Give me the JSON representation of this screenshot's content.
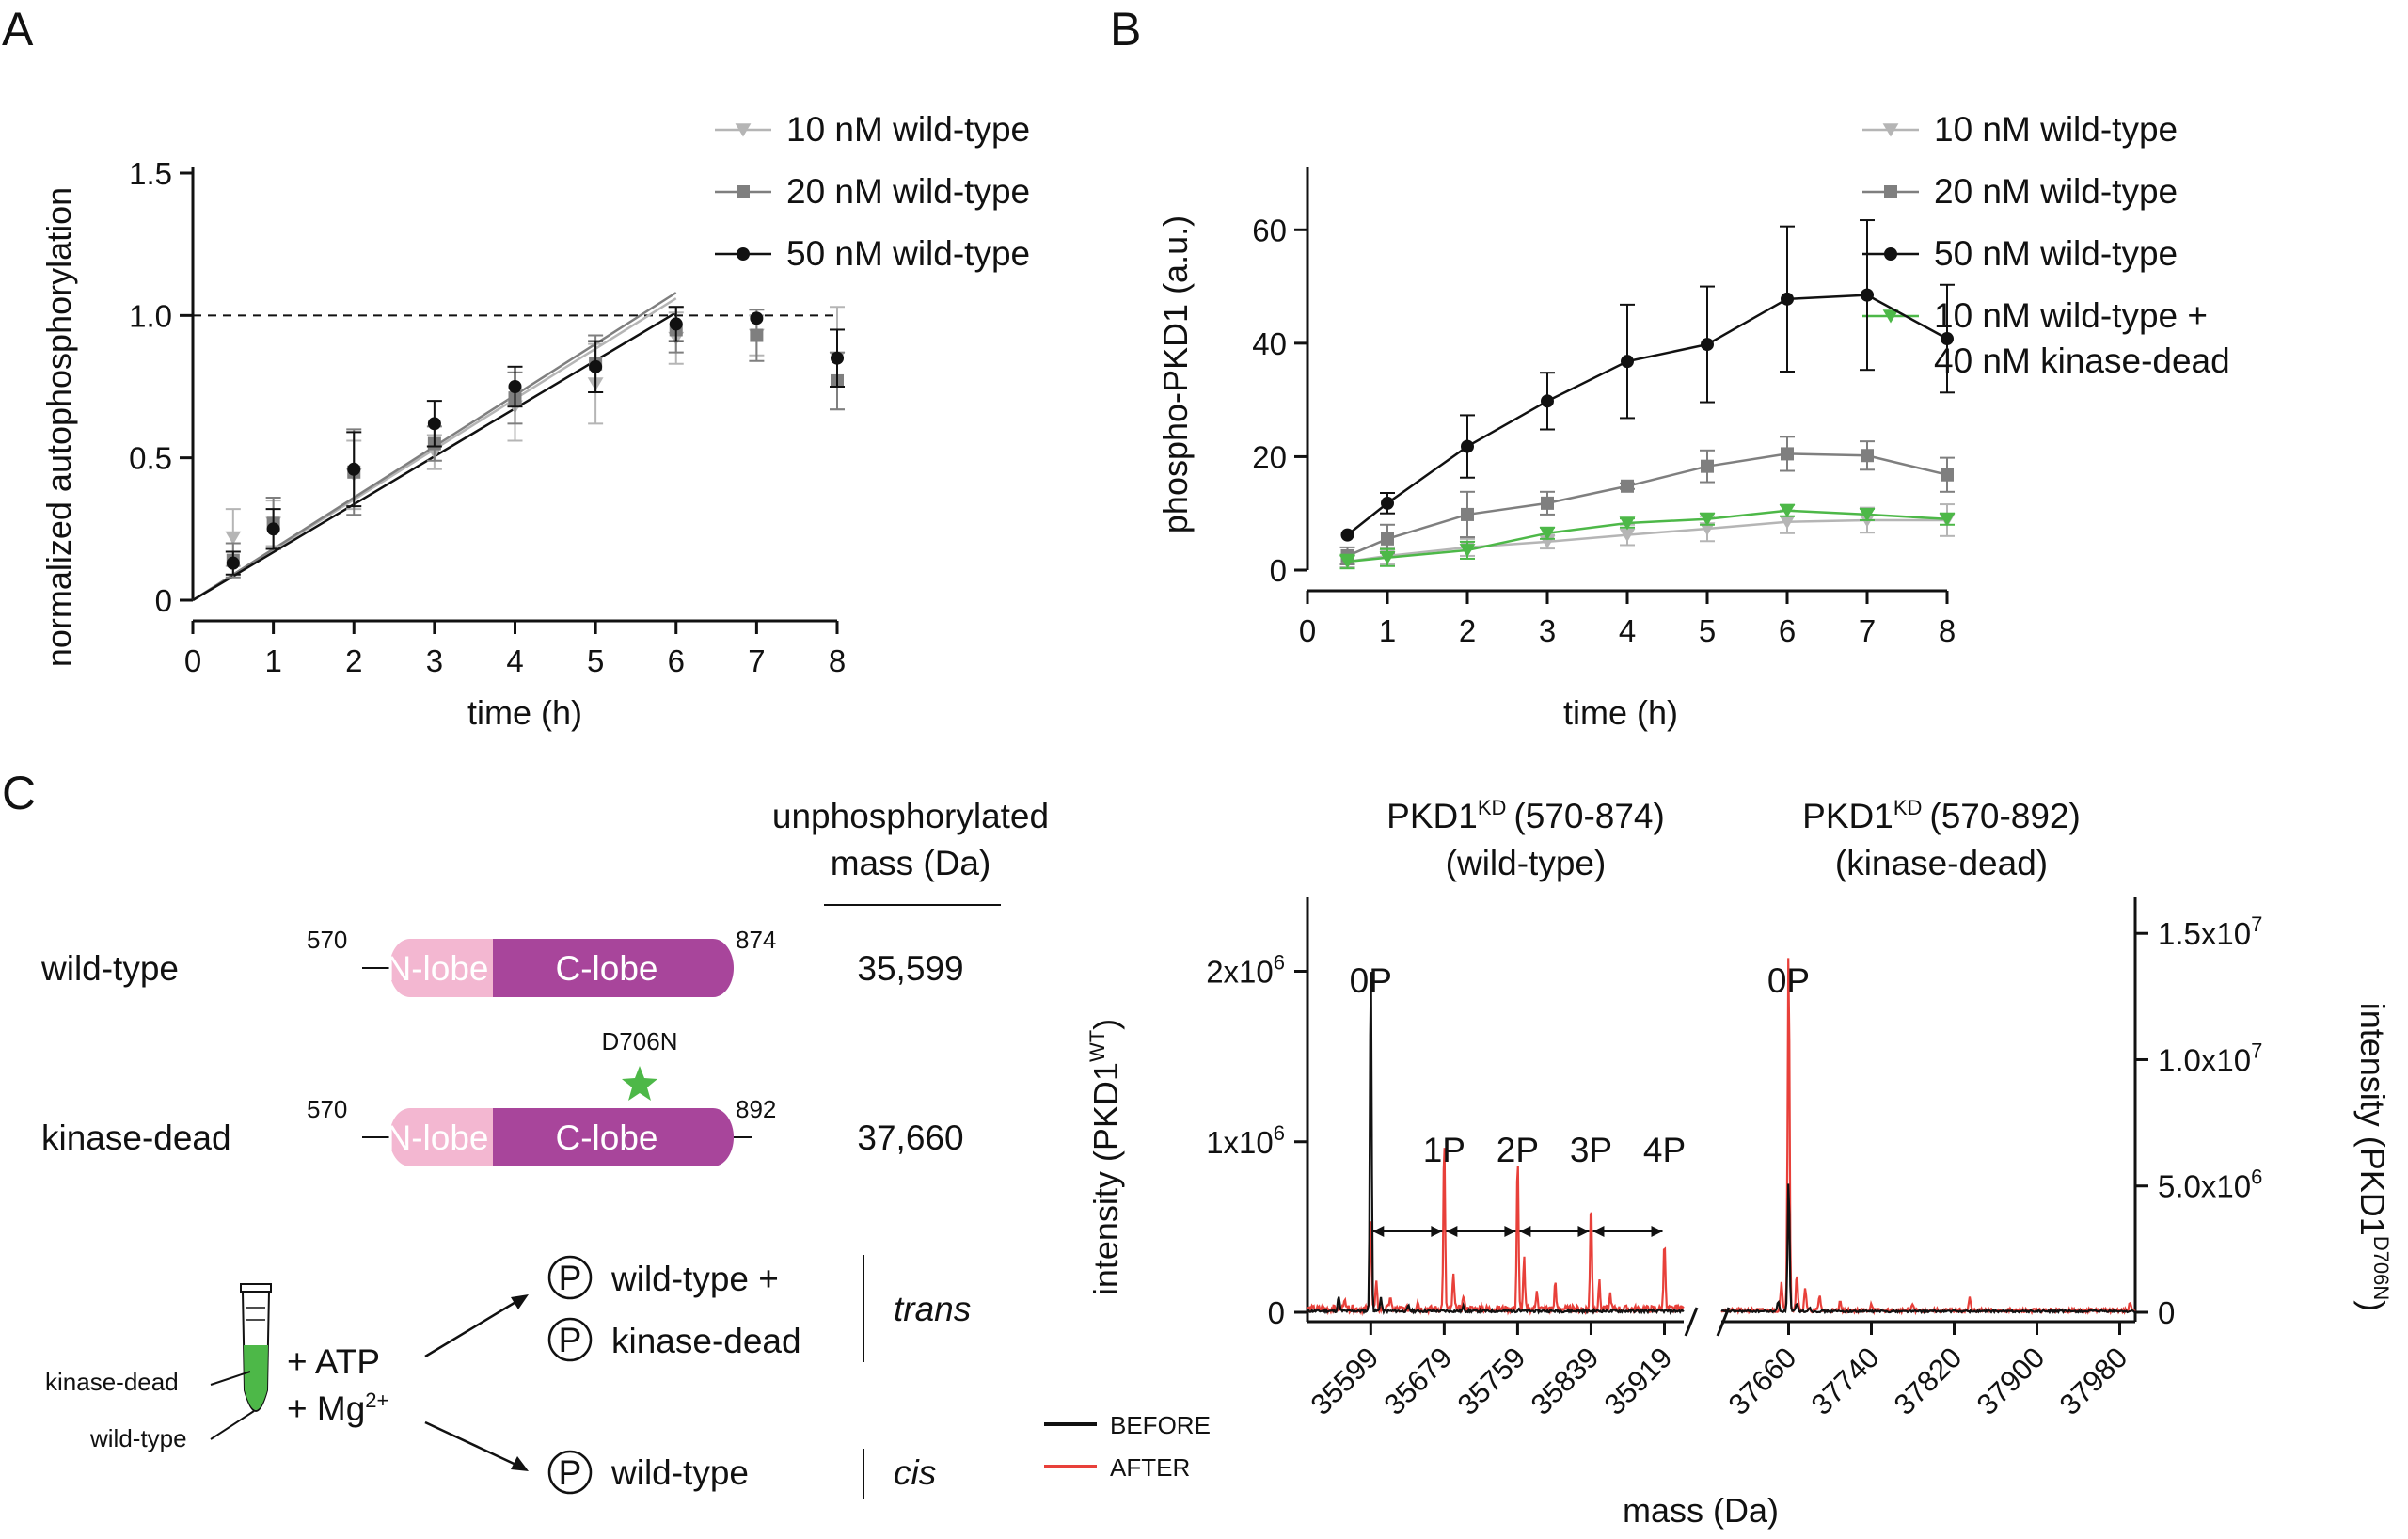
{
  "panels": {
    "a": "A",
    "b": "B",
    "c": "C"
  },
  "colors": {
    "black": "#111111",
    "dark_grey": "#7f7f7f",
    "light_grey": "#b5b5b5",
    "green": "#4db848",
    "red": "#e8403a",
    "pink": "#f3b7d1",
    "magenta": "#a8459b"
  },
  "chart_data": [
    {
      "id": "A",
      "type": "scatter",
      "xlabel": "time (h)",
      "ylabel": "normalized autophosphorylation",
      "xlim": [
        0,
        8
      ],
      "ylim": [
        0,
        1.5
      ],
      "xticks": [
        "0",
        "1",
        "2",
        "3",
        "4",
        "5",
        "6",
        "7",
        "8"
      ],
      "yticks": [
        "0",
        "0.5",
        "1.0",
        "1.5"
      ],
      "reference_line": {
        "y": 1.0,
        "style": "dashed"
      },
      "legend_position": "top-right",
      "series": [
        {
          "name": "10 nM wild-type",
          "marker": "triangle-down",
          "color": "#b5b5b5",
          "x": [
            0.5,
            1,
            2,
            3,
            4,
            5,
            6,
            7,
            8
          ],
          "y": [
            0.22,
            0.27,
            0.44,
            0.52,
            0.68,
            0.76,
            0.92,
            0.93,
            0.85
          ],
          "err": [
            0.1,
            0.08,
            0.12,
            0.06,
            0.12,
            0.14,
            0.09,
            0.07,
            0.18
          ],
          "fit": [
            [
              0,
              0
            ],
            [
              6,
              1.06
            ]
          ]
        },
        {
          "name": "20 nM wild-type",
          "marker": "square",
          "color": "#7f7f7f",
          "x": [
            0.5,
            1,
            2,
            3,
            4,
            5,
            6,
            7,
            8
          ],
          "y": [
            0.14,
            0.27,
            0.45,
            0.55,
            0.71,
            0.83,
            0.95,
            0.93,
            0.77
          ],
          "err": [
            0.06,
            0.09,
            0.15,
            0.06,
            0.09,
            0.1,
            0.08,
            0.09,
            0.1
          ],
          "fit": [
            [
              0,
              0
            ],
            [
              6,
              1.08
            ]
          ]
        },
        {
          "name": "50 nM wild-type",
          "marker": "circle",
          "color": "#111111",
          "x": [
            0.5,
            1,
            2,
            3,
            4,
            5,
            6,
            7,
            8
          ],
          "y": [
            0.13,
            0.25,
            0.46,
            0.62,
            0.75,
            0.82,
            0.97,
            0.99,
            0.85
          ],
          "err": [
            0.04,
            0.07,
            0.13,
            0.08,
            0.07,
            0.09,
            0.06,
            0.0,
            0.1
          ],
          "fit": [
            [
              0,
              0
            ],
            [
              6,
              1.01
            ]
          ]
        }
      ]
    },
    {
      "id": "B",
      "type": "line",
      "xlabel": "time (h)",
      "ylabel": "phospho-PKD1 (a.u.)",
      "xlim": [
        0,
        8
      ],
      "ylim": [
        0,
        70
      ],
      "xticks": [
        "0",
        "1",
        "2",
        "3",
        "4",
        "5",
        "6",
        "7",
        "8"
      ],
      "yticks": [
        "0",
        "20",
        "40",
        "60"
      ],
      "legend_position": "top-right",
      "series": [
        {
          "name": "10 nM wild-type",
          "marker": "triangle-down",
          "color": "#b5b5b5",
          "x": [
            0.5,
            1,
            2,
            3,
            4,
            5,
            6,
            7,
            8
          ],
          "y": [
            1.5,
            2.5,
            4.0,
            5.0,
            6.2,
            7.3,
            8.5,
            8.8,
            8.8
          ],
          "err": [
            1.0,
            1.5,
            1.5,
            1.2,
            1.8,
            2.2,
            2.0,
            2.2,
            2.8
          ]
        },
        {
          "name": "20 nM wild-type",
          "marker": "square",
          "color": "#7f7f7f",
          "x": [
            0.5,
            1,
            2,
            3,
            4,
            5,
            6,
            7,
            8
          ],
          "y": [
            2.5,
            5.5,
            9.8,
            11.8,
            14.8,
            18.3,
            20.5,
            20.2,
            16.8
          ],
          "err": [
            1.5,
            2.5,
            4.0,
            2.0,
            0.5,
            2.8,
            3.0,
            2.5,
            3.0
          ]
        },
        {
          "name": "50 nM wild-type",
          "marker": "circle",
          "color": "#111111",
          "x": [
            0.5,
            1,
            2,
            3,
            4,
            5,
            6,
            7,
            8
          ],
          "y": [
            6.2,
            11.8,
            21.8,
            29.8,
            36.8,
            39.8,
            47.8,
            48.5,
            40.8
          ],
          "err": [
            0.0,
            1.8,
            5.5,
            5.0,
            10.0,
            10.2,
            12.8,
            13.2,
            9.5
          ]
        },
        {
          "name": "10 nM wild-type +\n40 nM kinase-dead",
          "name_lines": [
            "10 nM wild-type +",
            "40 nM kinase-dead"
          ],
          "marker": "triangle-down",
          "color": "#4db848",
          "x": [
            0.5,
            1,
            2,
            3,
            4,
            5,
            6,
            7,
            8
          ],
          "y": [
            1.5,
            2.2,
            3.5,
            6.5,
            8.3,
            9.0,
            10.5,
            9.8,
            9.0
          ],
          "err": [
            1.2,
            1.5,
            1.5,
            1.0,
            0.8,
            1.0,
            1.0,
            1.0,
            1.0
          ]
        }
      ]
    },
    {
      "id": "C-wild-type",
      "type": "line",
      "title_lines": [
        "(570-874)",
        "(wild-type)"
      ],
      "title_prefix": "PKD1",
      "title_super": "KD",
      "xlabel": "mass (Da)",
      "ylabel_prefix": "intensity (PKD1",
      "ylabel_super": "WT",
      "ylabel_suffix": ")",
      "xlim": [
        35530,
        35940
      ],
      "ylim": [
        0,
        2400000.0
      ],
      "xticks": [
        "35599",
        "35679",
        "35759",
        "35839",
        "35919"
      ],
      "yticks": [
        {
          "value": 0,
          "base": "0",
          "exp": ""
        },
        {
          "value": 1000000,
          "base": "1x10",
          "exp": "6"
        },
        {
          "value": 2000000,
          "base": "2x10",
          "exp": "6"
        }
      ],
      "peak_labels": [
        {
          "x": 35599,
          "label": "0P"
        },
        {
          "x": 35679,
          "label": "1P"
        },
        {
          "x": 35759,
          "label": "2P"
        },
        {
          "x": 35839,
          "label": "3P"
        },
        {
          "x": 35919,
          "label": "4P"
        }
      ],
      "series": [
        {
          "name": "BEFORE",
          "color": "#111111",
          "peaks": [
            [
              35599,
              2100000
            ],
            [
              35564,
              90000
            ],
            [
              35610,
              80000
            ],
            [
              35640,
              30000
            ],
            [
              35700,
              25000
            ],
            [
              35760,
              15000
            ]
          ],
          "noise": 15000
        },
        {
          "name": "AFTER",
          "color": "#e8403a",
          "peaks": [
            [
              35599,
              560000
            ],
            [
              35605,
              150000
            ],
            [
              35620,
              70000
            ],
            [
              35679,
              1010000
            ],
            [
              35689,
              200000
            ],
            [
              35700,
              80000
            ],
            [
              35759,
              910000
            ],
            [
              35766,
              300000
            ],
            [
              35780,
              120000
            ],
            [
              35800,
              150000
            ],
            [
              35839,
              650000
            ],
            [
              35848,
              160000
            ],
            [
              35860,
              90000
            ],
            [
              35919,
              420000
            ],
            [
              35570,
              60000
            ],
            [
              35650,
              50000
            ]
          ],
          "noise": 40000
        }
      ]
    },
    {
      "id": "C-kinase-dead",
      "type": "line",
      "title_lines": [
        "(570-892)",
        "(kinase-dead)"
      ],
      "title_prefix": "PKD1",
      "title_super": "KD",
      "ylabel_prefix": "intensity (PKD1",
      "ylabel_super": "D706N",
      "ylabel_suffix": ")",
      "xlim": [
        37595,
        37995
      ],
      "ylim": [
        0,
        16200000.0
      ],
      "xticks": [
        "37660",
        "37740",
        "37820",
        "37900",
        "37980"
      ],
      "yticks": [
        {
          "value": 0,
          "base": "0",
          "exp": ""
        },
        {
          "value": 5000000,
          "base": "5.0x10",
          "exp": "6"
        },
        {
          "value": 10000000,
          "base": "1.0x10",
          "exp": "7"
        },
        {
          "value": 15000000,
          "base": "1.5x10",
          "exp": "7"
        }
      ],
      "peak_labels": [
        {
          "x": 37660,
          "label": "0P"
        }
      ],
      "series": [
        {
          "name": "BEFORE",
          "color": "#111111",
          "peaks": [
            [
              37660,
              5200000
            ],
            [
              37650,
              400000
            ],
            [
              37668,
              300000
            ],
            [
              37680,
              150000
            ]
          ],
          "noise": 80000
        },
        {
          "name": "AFTER",
          "color": "#e8403a",
          "peaks": [
            [
              37660,
              14500000
            ],
            [
              37653,
              1100000
            ],
            [
              37668,
              1500000
            ],
            [
              37676,
              900000
            ],
            [
              37690,
              600000
            ],
            [
              37710,
              400000
            ],
            [
              37740,
              300000
            ],
            [
              37780,
              250000
            ],
            [
              37835,
              500000
            ],
            [
              37990,
              300000
            ]
          ],
          "noise": 150000
        }
      ]
    }
  ],
  "diagram": {
    "mass_header_lines": [
      "unphosphorylated",
      "mass (Da)"
    ],
    "rows": [
      {
        "label": "wild-type",
        "start": "570",
        "end": "874",
        "nlobe": "N-lobe",
        "clobe": "C-lobe",
        "mass": "35,599"
      },
      {
        "label": "kinase-dead",
        "start": "570",
        "end": "892",
        "nlobe": "N-lobe",
        "clobe": "C-lobe",
        "mass": "37,660",
        "mutation": "D706N"
      }
    ],
    "tube_labels": [
      "kinase-dead",
      "wild-type"
    ],
    "reagents": [
      "+ ATP",
      "+ Mg"
    ],
    "reagent_super": "2+",
    "phospho_symbol": "P",
    "trans_lines": [
      "wild-type +",
      "kinase-dead"
    ],
    "trans_word": "trans",
    "cis_line": "wild-type",
    "cis_word": "cis",
    "legend": [
      {
        "name": "BEFORE",
        "color": "#111111"
      },
      {
        "name": "AFTER",
        "color": "#e8403a"
      }
    ]
  }
}
